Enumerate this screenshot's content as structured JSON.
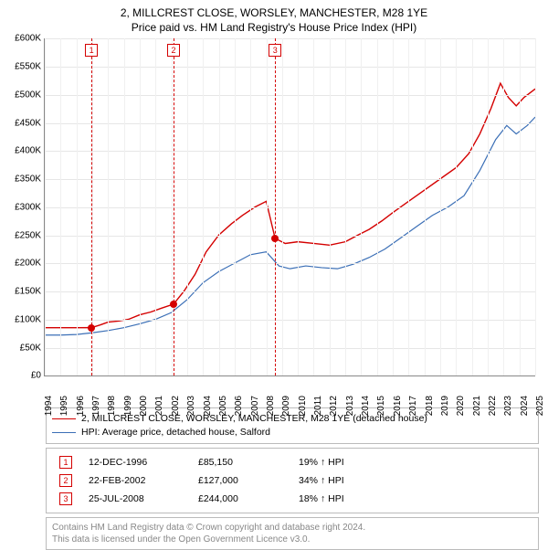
{
  "title": {
    "line1": "2, MILLCREST CLOSE, WORSLEY, MANCHESTER, M28 1YE",
    "line2": "Price paid vs. HM Land Registry's House Price Index (HPI)"
  },
  "chart": {
    "type": "line",
    "background_color": "#ffffff",
    "grid_color": "#e6e6e6",
    "axis_color": "#888888",
    "ylim": [
      0,
      600000
    ],
    "ytick_step": 50000,
    "y_labels": [
      "£0",
      "£50K",
      "£100K",
      "£150K",
      "£200K",
      "£250K",
      "£300K",
      "£350K",
      "£400K",
      "£450K",
      "£500K",
      "£550K",
      "£600K"
    ],
    "xlim": [
      1994,
      2025
    ],
    "x_labels": [
      "1994",
      "1995",
      "1996",
      "1997",
      "1998",
      "1999",
      "2000",
      "2001",
      "2002",
      "2003",
      "2004",
      "2005",
      "2006",
      "2007",
      "2008",
      "2009",
      "2010",
      "2011",
      "2012",
      "2013",
      "2014",
      "2015",
      "2016",
      "2017",
      "2018",
      "2019",
      "2020",
      "2021",
      "2022",
      "2023",
      "2024",
      "2025"
    ],
    "series": [
      {
        "name": "property",
        "color": "#d40000",
        "line_width": 1.4,
        "points": [
          [
            1994.0,
            85000
          ],
          [
            1995.0,
            85000
          ],
          [
            1996.0,
            85000
          ],
          [
            1996.95,
            85150
          ],
          [
            1997.5,
            90000
          ],
          [
            1998.0,
            95000
          ],
          [
            1998.7,
            97000
          ],
          [
            1999.3,
            100000
          ],
          [
            2000.0,
            108000
          ],
          [
            2000.7,
            113000
          ],
          [
            2001.4,
            120000
          ],
          [
            2002.14,
            127000
          ],
          [
            2002.8,
            150000
          ],
          [
            2003.5,
            180000
          ],
          [
            2004.2,
            220000
          ],
          [
            2005.0,
            250000
          ],
          [
            2005.8,
            270000
          ],
          [
            2006.5,
            285000
          ],
          [
            2007.3,
            300000
          ],
          [
            2008.0,
            310000
          ],
          [
            2008.56,
            244000
          ],
          [
            2009.2,
            235000
          ],
          [
            2010.0,
            238000
          ],
          [
            2011.0,
            235000
          ],
          [
            2012.0,
            232000
          ],
          [
            2013.0,
            238000
          ],
          [
            2013.8,
            250000
          ],
          [
            2014.5,
            260000
          ],
          [
            2015.3,
            275000
          ],
          [
            2016.0,
            290000
          ],
          [
            2017.0,
            310000
          ],
          [
            2018.0,
            330000
          ],
          [
            2019.0,
            350000
          ],
          [
            2020.0,
            370000
          ],
          [
            2020.8,
            395000
          ],
          [
            2021.5,
            430000
          ],
          [
            2022.2,
            475000
          ],
          [
            2022.8,
            520000
          ],
          [
            2023.3,
            495000
          ],
          [
            2023.8,
            480000
          ],
          [
            2024.3,
            495000
          ],
          [
            2025.0,
            510000
          ]
        ]
      },
      {
        "name": "hpi",
        "color": "#3b6fb6",
        "line_width": 1.2,
        "points": [
          [
            1994.0,
            72000
          ],
          [
            1995.0,
            72000
          ],
          [
            1996.0,
            73000
          ],
          [
            1997.0,
            76000
          ],
          [
            1998.0,
            80000
          ],
          [
            1999.0,
            85000
          ],
          [
            2000.0,
            92000
          ],
          [
            2001.0,
            100000
          ],
          [
            2002.0,
            112000
          ],
          [
            2003.0,
            135000
          ],
          [
            2004.0,
            165000
          ],
          [
            2005.0,
            185000
          ],
          [
            2006.0,
            200000
          ],
          [
            2007.0,
            215000
          ],
          [
            2008.0,
            220000
          ],
          [
            2008.8,
            195000
          ],
          [
            2009.5,
            190000
          ],
          [
            2010.5,
            195000
          ],
          [
            2011.5,
            192000
          ],
          [
            2012.5,
            190000
          ],
          [
            2013.5,
            198000
          ],
          [
            2014.5,
            210000
          ],
          [
            2015.5,
            225000
          ],
          [
            2016.5,
            245000
          ],
          [
            2017.5,
            265000
          ],
          [
            2018.5,
            285000
          ],
          [
            2019.5,
            300000
          ],
          [
            2020.5,
            320000
          ],
          [
            2021.5,
            365000
          ],
          [
            2022.5,
            420000
          ],
          [
            2023.2,
            445000
          ],
          [
            2023.8,
            430000
          ],
          [
            2024.5,
            445000
          ],
          [
            2025.0,
            460000
          ]
        ]
      }
    ],
    "event_markers": [
      {
        "index": "1",
        "x": 1996.95,
        "y": 85150,
        "color": "#d40000"
      },
      {
        "index": "2",
        "x": 2002.14,
        "y": 127000,
        "color": "#d40000"
      },
      {
        "index": "3",
        "x": 2008.56,
        "y": 244000,
        "color": "#d40000"
      }
    ]
  },
  "legend": {
    "items": [
      {
        "color": "#d40000",
        "label": "2, MILLCREST CLOSE, WORSLEY, MANCHESTER, M28 1YE (detached house)"
      },
      {
        "color": "#3b6fb6",
        "label": "HPI: Average price, detached house, Salford"
      }
    ]
  },
  "events": {
    "marker_color": "#d40000",
    "rows": [
      {
        "index": "1",
        "date": "12-DEC-1996",
        "price": "£85,150",
        "delta": "19%",
        "arrow": "up",
        "suffix": "HPI"
      },
      {
        "index": "2",
        "date": "22-FEB-2002",
        "price": "£127,000",
        "delta": "34%",
        "arrow": "up",
        "suffix": "HPI"
      },
      {
        "index": "3",
        "date": "25-JUL-2008",
        "price": "£244,000",
        "delta": "18%",
        "arrow": "up",
        "suffix": "HPI"
      }
    ]
  },
  "footer": {
    "line1": "Contains HM Land Registry data © Crown copyright and database right 2024.",
    "line2": "This data is licensed under the Open Government Licence v3.0."
  }
}
